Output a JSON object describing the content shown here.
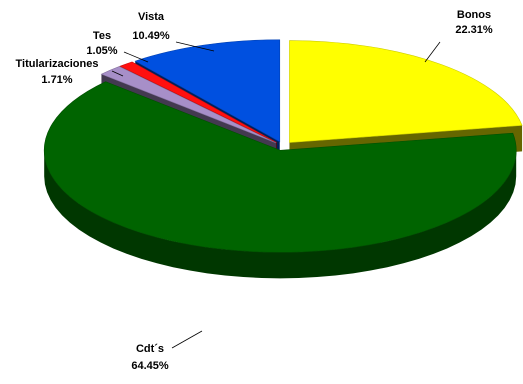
{
  "chart_data": {
    "type": "pie",
    "variant": "3d-exploded",
    "slices": [
      {
        "label": "Bonos",
        "percent_label": "22.31%",
        "value": 22.31,
        "color": "#FFFF00"
      },
      {
        "label": "Cdt´s",
        "percent_label": "64.45%",
        "value": 64.45,
        "color": "#006400"
      },
      {
        "label": "Titularizaciones",
        "percent_label": "1.71%",
        "value": 1.71,
        "color": "#A78FC8"
      },
      {
        "label": "Tes",
        "percent_label": "1.05%",
        "value": 1.05,
        "color": "#FF1010"
      },
      {
        "label": "Vista",
        "percent_label": "10.49%",
        "value": 10.49,
        "color": "#0050E0"
      }
    ],
    "start_angle_deg": 90,
    "direction": "clockwise",
    "legend": "none",
    "data_labels": "outside-with-leader-lines"
  }
}
